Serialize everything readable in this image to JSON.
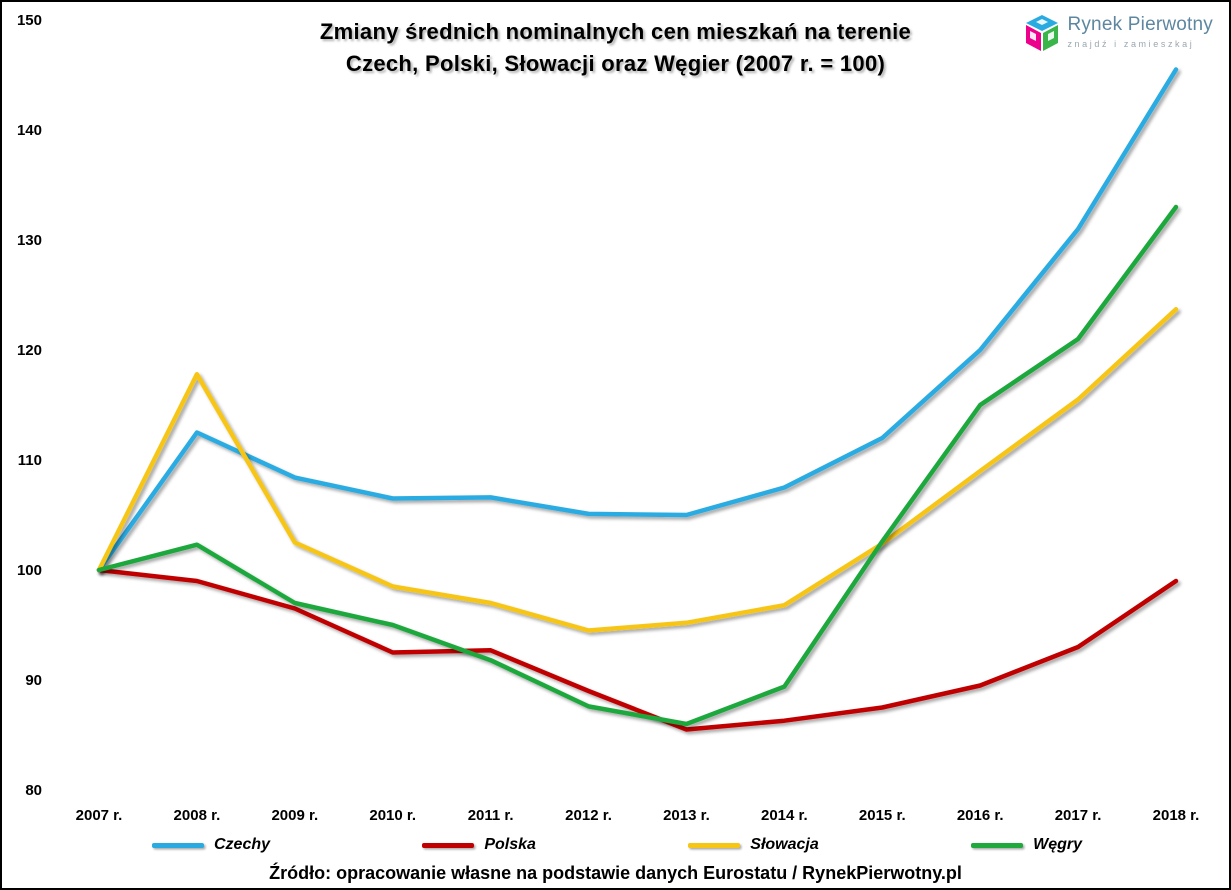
{
  "chart_data": {
    "type": "line",
    "title": "Zmiany średnich nominalnych cen mieszkań na terenie Czech, Polski, Słowacji oraz Węgier (2007 r. = 100)",
    "title_line1": "Zmiany średnich nominalnych cen mieszkań na terenie",
    "title_line2": "Czech, Polski, Słowacji oraz Węgier (2007 r. = 100)",
    "categories": [
      "2007 r.",
      "2008 r.",
      "2009 r.",
      "2010 r.",
      "2011 r.",
      "2012 r.",
      "2013 r.",
      "2014 r.",
      "2015 r.",
      "2016 r.",
      "2017 r.",
      "2018 r."
    ],
    "series": [
      {
        "name": "Czechy",
        "color": "#29ABE2",
        "values": [
          100,
          112.5,
          108.4,
          106.5,
          106.6,
          105.1,
          105.0,
          107.5,
          112.0,
          120.0,
          131.0,
          145.5
        ]
      },
      {
        "name": "Polska",
        "color": "#C00000",
        "values": [
          100,
          99.0,
          96.5,
          92.5,
          92.7,
          89.0,
          85.5,
          86.3,
          87.5,
          89.5,
          93.0,
          99.0
        ]
      },
      {
        "name": "Słowacja",
        "color": "#F7C513",
        "values": [
          100,
          117.8,
          102.5,
          98.5,
          97.0,
          94.5,
          95.2,
          96.8,
          102.4,
          109.0,
          115.5,
          123.7
        ]
      },
      {
        "name": "Węgry",
        "color": "#1FA83C",
        "values": [
          100,
          102.3,
          97.0,
          95.0,
          91.8,
          87.6,
          86.0,
          89.4,
          102.6,
          115.0,
          121.0,
          133.0
        ]
      }
    ],
    "ylim": [
      80,
      150
    ],
    "yticks": [
      80,
      90,
      100,
      110,
      120,
      130,
      140,
      150
    ],
    "grid": false,
    "legend_position": "bottom"
  },
  "logo": {
    "brand": "Rynek Pierwotny",
    "tagline": "znajdź i zamieszkaj"
  },
  "source": "Źródło: opracowanie własne na podstawie danych Eurostatu / RynekPierwotny.pl"
}
